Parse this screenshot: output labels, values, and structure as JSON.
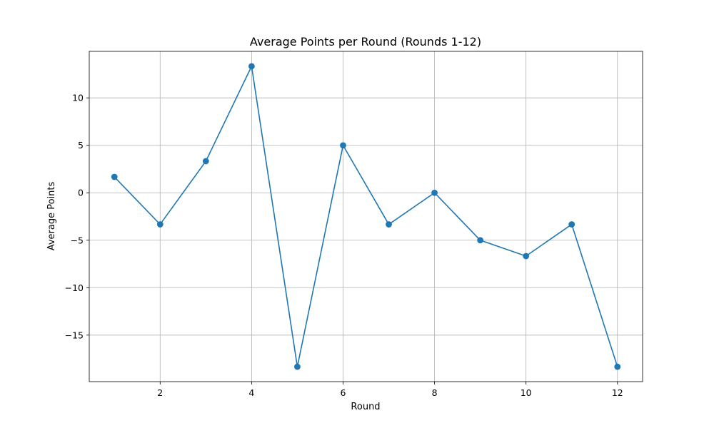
{
  "chart_data": {
    "type": "line",
    "title": "Average Points per Round (Rounds 1-12)",
    "xlabel": "Round",
    "ylabel": "Average Points",
    "x": [
      1,
      2,
      3,
      4,
      5,
      6,
      7,
      8,
      9,
      10,
      11,
      12
    ],
    "series": [
      {
        "values": [
          1.67,
          -3.33,
          3.33,
          13.33,
          -18.33,
          5.0,
          -3.33,
          0.0,
          -5.0,
          -6.67,
          -3.33,
          -18.33
        ],
        "color": "#1f77b4",
        "marker": "circle"
      }
    ],
    "xlim": [
      0.45,
      12.55
    ],
    "ylim": [
      -19.9,
      14.9
    ],
    "xticks": [
      2,
      4,
      6,
      8,
      10,
      12
    ],
    "yticks": [
      10,
      5,
      0,
      -5,
      -10,
      -15
    ],
    "xtick_labels": [
      "2",
      "4",
      "6",
      "8",
      "10",
      "12"
    ],
    "ytick_labels": [
      "10",
      "5",
      "0",
      "−5",
      "−10",
      "−15"
    ],
    "grid": true
  }
}
